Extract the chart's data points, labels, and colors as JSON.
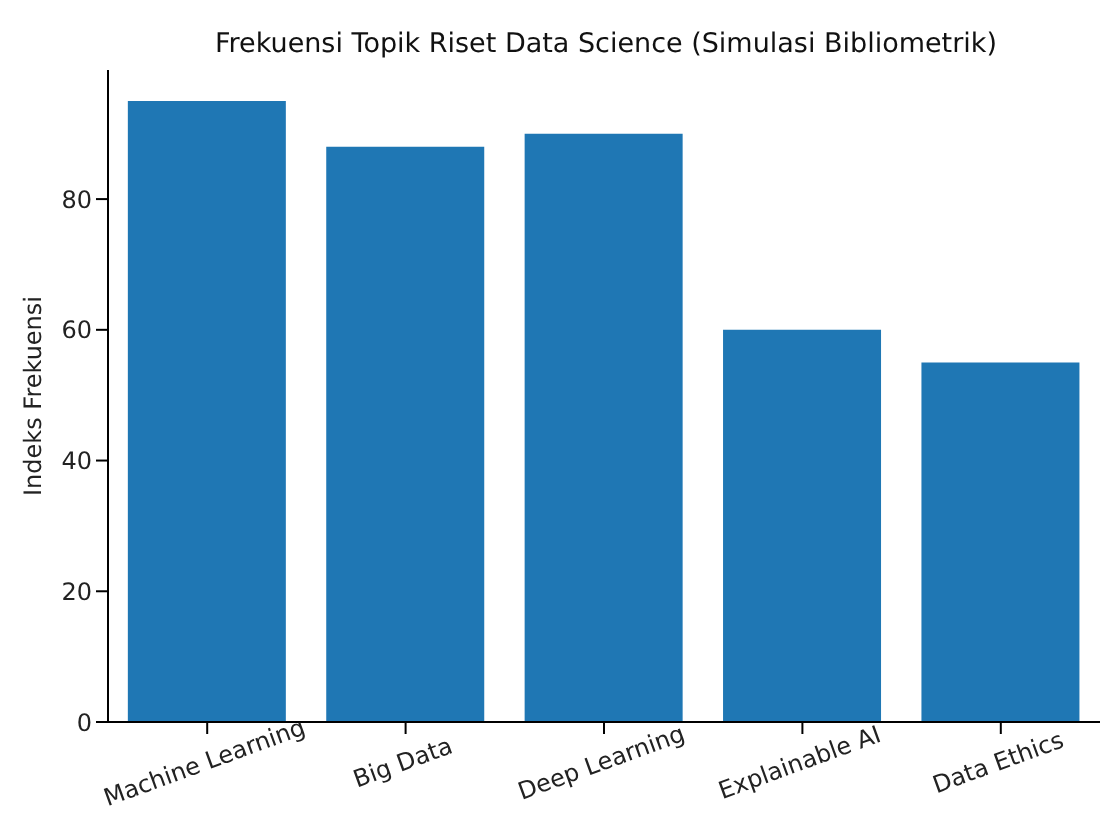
{
  "chart_data": {
    "type": "bar",
    "title": "Frekuensi Topik Riset Data Science (Simulasi Bibliometrik)",
    "ylabel": "Indeks Frekuensi",
    "categories": [
      "Machine Learning",
      "Big Data",
      "Deep Learning",
      "Explainable AI",
      "Data Ethics"
    ],
    "values": [
      95,
      88,
      90,
      60,
      55
    ],
    "color": "#1f77b4",
    "ylim": [
      0,
      99.75
    ],
    "yticks": [
      0,
      20,
      40,
      60,
      80
    ]
  }
}
